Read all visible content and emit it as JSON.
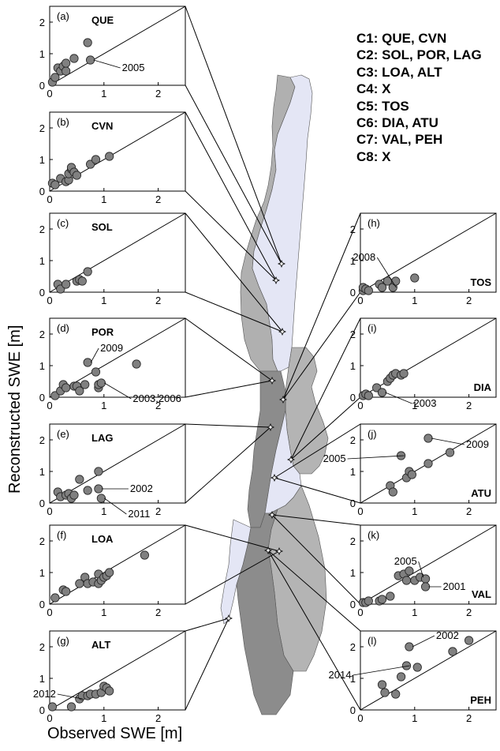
{
  "figure": {
    "ylabel": "Reconstructed SWE [m]",
    "xlabel": "Observed SWE [m]",
    "legend": [
      "C1: QUE, CVN",
      "C2: SOL, POR, LAG",
      "C3: LOA, ALT",
      "C4: X",
      "C5: TOS",
      "C6: DIA, ATU",
      "C7: VAL, PEH",
      "C8: X"
    ],
    "colors": {
      "marker": "#808080",
      "basin_dark": "#8c8c8c",
      "basin_mid": "#b4b4b4",
      "basin_light": "#e4e6f5"
    }
  },
  "chart_data": [
    {
      "type": "scatter",
      "panel": "(a)",
      "title": "QUE",
      "xlim": [
        0,
        2.5
      ],
      "ylim": [
        0,
        2.5
      ],
      "xticks": [
        "0",
        "1",
        "2"
      ],
      "yticks": [
        "0",
        "1",
        "2"
      ],
      "one_to_one_line": true,
      "points": [
        [
          0.05,
          0.1
        ],
        [
          0.1,
          0.25
        ],
        [
          0.15,
          0.55
        ],
        [
          0.2,
          0.45
        ],
        [
          0.25,
          0.6
        ],
        [
          0.3,
          0.45
        ],
        [
          0.3,
          0.7
        ],
        [
          0.45,
          0.85
        ],
        [
          0.7,
          1.35
        ],
        [
          0.75,
          0.8
        ]
      ],
      "annotations": [
        {
          "text": "2005",
          "x": 0.75,
          "y": 0.8
        }
      ]
    },
    {
      "type": "scatter",
      "panel": "(b)",
      "title": "CVN",
      "xlim": [
        0,
        2.5
      ],
      "ylim": [
        0,
        2.5
      ],
      "xticks": [
        "0",
        "1",
        "2"
      ],
      "yticks": [
        "0",
        "1",
        "2"
      ],
      "one_to_one_line": true,
      "points": [
        [
          0.05,
          0.25
        ],
        [
          0.1,
          0.2
        ],
        [
          0.2,
          0.4
        ],
        [
          0.3,
          0.3
        ],
        [
          0.35,
          0.35
        ],
        [
          0.35,
          0.55
        ],
        [
          0.4,
          0.7
        ],
        [
          0.4,
          0.75
        ],
        [
          0.45,
          0.6
        ],
        [
          0.5,
          0.5
        ],
        [
          0.75,
          0.85
        ],
        [
          0.85,
          1.0
        ],
        [
          1.1,
          1.1
        ]
      ],
      "annotations": []
    },
    {
      "type": "scatter",
      "panel": "(c)",
      "title": "SOL",
      "xlim": [
        0,
        2.5
      ],
      "ylim": [
        0,
        2.5
      ],
      "xticks": [
        "0",
        "1",
        "2"
      ],
      "yticks": [
        "0",
        "1",
        "2"
      ],
      "one_to_one_line": true,
      "points": [
        [
          0.15,
          0.25
        ],
        [
          0.2,
          0.1
        ],
        [
          0.3,
          0.25
        ],
        [
          0.5,
          0.35
        ],
        [
          0.55,
          0.4
        ],
        [
          0.6,
          0.35
        ],
        [
          0.7,
          0.65
        ]
      ],
      "annotations": []
    },
    {
      "type": "scatter",
      "panel": "(d)",
      "title": "POR",
      "xlim": [
        0,
        2.5
      ],
      "ylim": [
        0,
        2.5
      ],
      "xticks": [
        "0",
        "1",
        "2"
      ],
      "yticks": [
        "0",
        "1",
        "2"
      ],
      "one_to_one_line": true,
      "points": [
        [
          0.1,
          0.05
        ],
        [
          0.2,
          0.2
        ],
        [
          0.25,
          0.4
        ],
        [
          0.3,
          0.3
        ],
        [
          0.45,
          0.35
        ],
        [
          0.5,
          0.35
        ],
        [
          0.55,
          0.2
        ],
        [
          0.65,
          0.4
        ],
        [
          0.7,
          1.1
        ],
        [
          0.85,
          0.8
        ],
        [
          0.9,
          0.3
        ],
        [
          0.9,
          0.4
        ],
        [
          0.95,
          0.45
        ],
        [
          1.6,
          1.05
        ]
      ],
      "annotations": [
        {
          "text": "2009",
          "x": 0.7,
          "y": 1.1
        },
        {
          "text": "2003,2006",
          "x": 0.95,
          "y": 0.45
        }
      ]
    },
    {
      "type": "scatter",
      "panel": "(e)",
      "title": "LAG",
      "xlim": [
        0,
        2.5
      ],
      "ylim": [
        0,
        2.5
      ],
      "xticks": [
        "0",
        "1",
        "2"
      ],
      "yticks": [
        "0",
        "1",
        "2"
      ],
      "one_to_one_line": true,
      "points": [
        [
          0.15,
          0.35
        ],
        [
          0.2,
          0.2
        ],
        [
          0.3,
          0.25
        ],
        [
          0.35,
          0.3
        ],
        [
          0.4,
          0.15
        ],
        [
          0.45,
          0.25
        ],
        [
          0.55,
          0.75
        ],
        [
          0.7,
          0.4
        ],
        [
          0.9,
          1.0
        ],
        [
          0.9,
          0.45
        ],
        [
          0.95,
          0.15
        ]
      ],
      "annotations": [
        {
          "text": "2002",
          "x": 0.9,
          "y": 0.45
        },
        {
          "text": "2011",
          "x": 0.95,
          "y": 0.15
        }
      ]
    },
    {
      "type": "scatter",
      "panel": "(f)",
      "title": "LOA",
      "xlim": [
        0,
        2.5
      ],
      "ylim": [
        0,
        2.5
      ],
      "xticks": [
        "0",
        "1",
        "2"
      ],
      "yticks": [
        "0",
        "1",
        "2"
      ],
      "one_to_one_line": true,
      "points": [
        [
          0.1,
          0.2
        ],
        [
          0.25,
          0.45
        ],
        [
          0.3,
          0.4
        ],
        [
          0.55,
          0.65
        ],
        [
          0.65,
          0.85
        ],
        [
          0.7,
          0.65
        ],
        [
          0.8,
          0.7
        ],
        [
          0.9,
          0.65
        ],
        [
          0.9,
          0.95
        ],
        [
          0.95,
          0.75
        ],
        [
          1.0,
          0.85
        ],
        [
          1.05,
          0.9
        ],
        [
          1.1,
          1.0
        ],
        [
          1.75,
          1.55
        ]
      ],
      "annotations": []
    },
    {
      "type": "scatter",
      "panel": "(g)",
      "title": "ALT",
      "xlim": [
        0,
        2.5
      ],
      "ylim": [
        0,
        2.5
      ],
      "xticks": [
        "0",
        "1",
        "2"
      ],
      "yticks": [
        "0",
        "1",
        "2"
      ],
      "one_to_one_line": true,
      "points": [
        [
          0.05,
          0.1
        ],
        [
          0.4,
          0.1
        ],
        [
          0.55,
          0.35
        ],
        [
          0.6,
          0.45
        ],
        [
          0.7,
          0.45
        ],
        [
          0.75,
          0.5
        ],
        [
          0.85,
          0.5
        ],
        [
          0.95,
          0.55
        ],
        [
          1.0,
          0.75
        ],
        [
          1.05,
          0.7
        ],
        [
          1.1,
          0.6
        ]
      ],
      "annotations": [
        {
          "text": "2012",
          "x": 0.55,
          "y": 0.35
        }
      ]
    },
    {
      "type": "scatter",
      "panel": "(h)",
      "title": "TOS",
      "xlim": [
        0,
        2.5
      ],
      "ylim": [
        0,
        2.5
      ],
      "xticks": [
        "0",
        "1",
        "2"
      ],
      "yticks": [
        "0",
        "1",
        "2"
      ],
      "one_to_one_line": true,
      "points": [
        [
          0.05,
          0.05
        ],
        [
          0.05,
          0.15
        ],
        [
          0.1,
          0.1
        ],
        [
          0.15,
          0.05
        ],
        [
          0.35,
          0.25
        ],
        [
          0.4,
          0.15
        ],
        [
          0.5,
          0.35
        ],
        [
          0.6,
          0.15
        ],
        [
          0.65,
          0.35
        ],
        [
          1.0,
          0.45
        ]
      ],
      "annotations": [
        {
          "text": "2008",
          "x": 0.6,
          "y": 0.15
        }
      ]
    },
    {
      "type": "scatter",
      "panel": "(i)",
      "title": "DIA",
      "xlim": [
        0,
        2.5
      ],
      "ylim": [
        0,
        2.5
      ],
      "xticks": [
        "0",
        "1",
        "2"
      ],
      "yticks": [
        "0",
        "1",
        "2"
      ],
      "one_to_one_line": true,
      "points": [
        [
          0.05,
          0.05
        ],
        [
          0.1,
          0.1
        ],
        [
          0.15,
          0.05
        ],
        [
          0.3,
          0.3
        ],
        [
          0.4,
          0.15
        ],
        [
          0.5,
          0.5
        ],
        [
          0.55,
          0.6
        ],
        [
          0.6,
          0.7
        ],
        [
          0.65,
          0.75
        ],
        [
          0.75,
          0.7
        ],
        [
          0.8,
          0.75
        ]
      ],
      "annotations": [
        {
          "text": "2003",
          "x": 0.4,
          "y": 0.15
        }
      ]
    },
    {
      "type": "scatter",
      "panel": "(j)",
      "title": "ATU",
      "xlim": [
        0,
        2.5
      ],
      "ylim": [
        0,
        2.5
      ],
      "xticks": [
        "0",
        "1",
        "2"
      ],
      "yticks": [
        "0",
        "1",
        "2"
      ],
      "one_to_one_line": true,
      "points": [
        [
          0.55,
          0.55
        ],
        [
          0.6,
          0.35
        ],
        [
          0.75,
          1.5
        ],
        [
          0.85,
          0.8
        ],
        [
          0.9,
          1.0
        ],
        [
          0.95,
          0.9
        ],
        [
          1.25,
          1.25
        ],
        [
          1.25,
          2.05
        ],
        [
          1.65,
          1.6
        ]
      ],
      "annotations": [
        {
          "text": "2005",
          "x": 0.75,
          "y": 1.5
        },
        {
          "text": "2009",
          "x": 1.25,
          "y": 2.05
        }
      ]
    },
    {
      "type": "scatter",
      "panel": "(k)",
      "title": "VAL",
      "xlim": [
        0,
        2.5
      ],
      "ylim": [
        0,
        2.5
      ],
      "xticks": [
        "0",
        "1",
        "2"
      ],
      "yticks": [
        "0",
        "1",
        "2"
      ],
      "one_to_one_line": true,
      "points": [
        [
          0.05,
          0.05
        ],
        [
          0.1,
          0.05
        ],
        [
          0.15,
          0.1
        ],
        [
          0.35,
          0.1
        ],
        [
          0.4,
          0.15
        ],
        [
          0.55,
          0.25
        ],
        [
          0.7,
          0.9
        ],
        [
          0.8,
          0.95
        ],
        [
          0.85,
          0.75
        ],
        [
          0.9,
          1.05
        ],
        [
          1.0,
          0.75
        ],
        [
          1.1,
          0.85
        ],
        [
          1.2,
          0.8
        ],
        [
          1.2,
          0.55
        ]
      ],
      "annotations": [
        {
          "text": "2005",
          "x": 1.1,
          "y": 0.85
        },
        {
          "text": "2001",
          "x": 1.2,
          "y": 0.55
        }
      ]
    },
    {
      "type": "scatter",
      "panel": "(l)",
      "title": "PEH",
      "xlim": [
        0,
        2.5
      ],
      "ylim": [
        0,
        2.5
      ],
      "xticks": [
        "0",
        "1",
        "2"
      ],
      "yticks": [
        "0",
        "1",
        "2"
      ],
      "one_to_one_line": true,
      "points": [
        [
          0.4,
          0.8
        ],
        [
          0.45,
          0.55
        ],
        [
          0.65,
          0.5
        ],
        [
          0.75,
          1.05
        ],
        [
          0.85,
          1.4
        ],
        [
          0.9,
          2.0
        ],
        [
          1.05,
          1.35
        ],
        [
          1.7,
          1.85
        ],
        [
          2.0,
          2.2
        ]
      ],
      "annotations": [
        {
          "text": "2014",
          "x": 0.85,
          "y": 1.4
        },
        {
          "text": "2002",
          "x": 0.9,
          "y": 2.0
        }
      ]
    }
  ]
}
